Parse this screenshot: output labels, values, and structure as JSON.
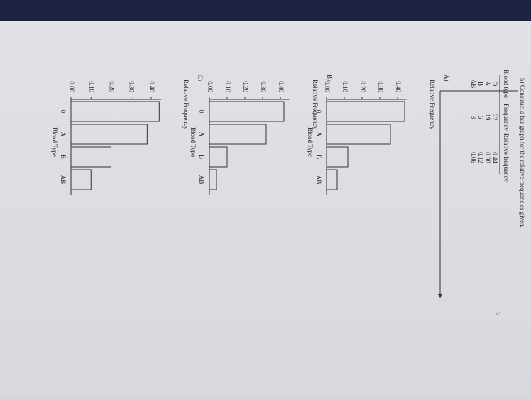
{
  "question": "5) Construct a bar graph for the relative frequencies given.",
  "table": {
    "headers": [
      "Blood type",
      "Frequency",
      "Relative frequency"
    ],
    "rows": [
      [
        "O",
        22,
        0.44
      ],
      [
        "A",
        19,
        0.38
      ],
      [
        "B",
        6,
        0.12
      ],
      [
        "AB",
        3,
        0.06
      ]
    ],
    "row_labels": [
      [
        "O",
        "22",
        "0.44"
      ],
      [
        "A",
        "19",
        "0.38"
      ],
      [
        "B",
        "6",
        "0.12"
      ],
      [
        "AB",
        "3",
        "0.06"
      ]
    ]
  },
  "charts": [
    {
      "type": "bar",
      "label": "A)",
      "y_label": "Relative Frequency",
      "x_label": "Blood Type",
      "categories": [
        "0",
        "A",
        "B",
        "AB"
      ],
      "values": [
        0.44,
        0.36,
        0.12,
        0.06
      ],
      "ylim": [
        0,
        0.45
      ],
      "yticks": [
        {
          "value": 0,
          "label": "0.00"
        },
        {
          "value": 0.1,
          "label": "0.10"
        },
        {
          "value": 0.2,
          "label": "0.20"
        },
        {
          "value": 0.3,
          "label": "0.30"
        },
        {
          "value": 0.4,
          "label": "0.40"
        }
      ]
    },
    {
      "type": "bar",
      "label": "B)",
      "y_label": "Relative Frequency",
      "x_label": "Blood Type",
      "categories": [
        "0",
        "A",
        "B",
        "AB"
      ],
      "values": [
        0.42,
        0.32,
        0.1,
        0.04
      ],
      "ylim": [
        0,
        0.45
      ],
      "yticks": [
        {
          "value": 0,
          "label": "0.00"
        },
        {
          "value": 0.1,
          "label": "0.10"
        },
        {
          "value": 0.2,
          "label": "0.20"
        },
        {
          "value": 0.3,
          "label": "0.30"
        },
        {
          "value": 0.4,
          "label": "0.40"
        }
      ]
    },
    {
      "type": "bar",
      "label": "C)",
      "y_label": "Relative Frequency",
      "x_label": "Blood Type",
      "categories": [
        "0",
        "A",
        "B",
        "AB"
      ],
      "values": [
        0.44,
        0.38,
        0.2,
        0.1
      ],
      "ylim": [
        0,
        0.45
      ],
      "yticks": [
        {
          "value": 0,
          "label": "0.00"
        },
        {
          "value": 0.1,
          "label": "0.10"
        },
        {
          "value": 0.2,
          "label": "0.20"
        },
        {
          "value": 0.3,
          "label": "0.30"
        },
        {
          "value": 0.4,
          "label": "0.40"
        }
      ]
    }
  ],
  "page_number": "2"
}
